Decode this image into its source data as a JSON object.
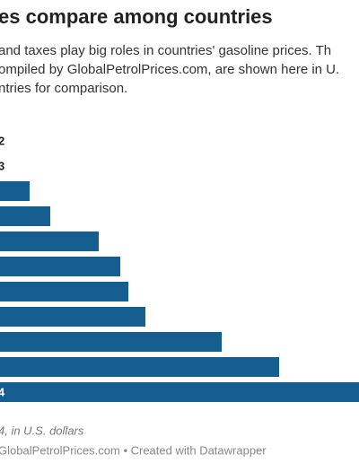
{
  "chart_data": {
    "type": "bar",
    "orientation": "horizontal",
    "title": "es compare among countries",
    "subtitle": [
      "and taxes play big roles in countries' gasoline prices. Th",
      "ompiled by GlobalPetrolPrices.com, are shown here in U.",
      "ntries for comparison."
    ],
    "labels": [
      "2",
      "3",
      null,
      null,
      null,
      null,
      null,
      null,
      null,
      null,
      "4"
    ],
    "values": [
      0,
      0,
      33,
      56,
      110,
      134,
      143,
      162,
      247,
      311,
      400
    ],
    "xlim": [
      0,
      400
    ],
    "color": "#155e8f",
    "note": "4, in U.S. dollars",
    "source": "GlobalPetrolPrices.com • Created with Datawrapper"
  }
}
